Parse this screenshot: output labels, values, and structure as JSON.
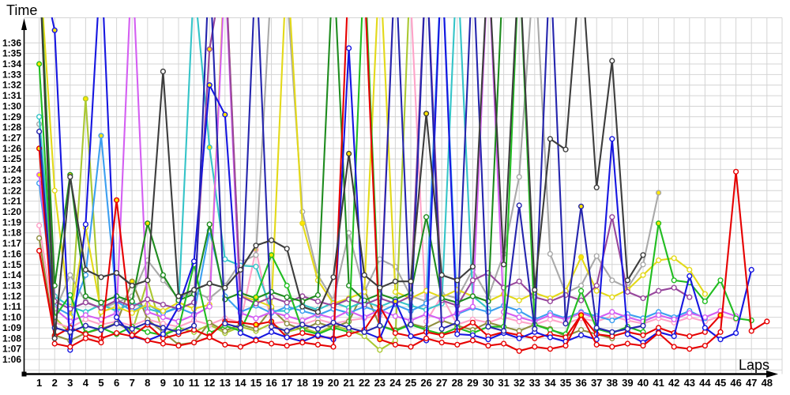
{
  "chart_data": {
    "type": "line",
    "title": "",
    "ylabel": "Time",
    "xlabel": "Laps",
    "x": [
      1,
      2,
      3,
      4,
      5,
      6,
      7,
      8,
      9,
      10,
      11,
      12,
      13,
      14,
      15,
      16,
      17,
      18,
      19,
      20,
      21,
      22,
      23,
      24,
      25,
      26,
      27,
      28,
      29,
      30,
      31,
      32,
      33,
      34,
      35,
      36,
      37,
      38,
      39,
      40,
      41,
      42,
      43,
      44,
      45,
      46,
      47,
      48
    ],
    "y_axis": {
      "unit": "m:ss",
      "min": "1:06",
      "max": "1:36",
      "grid_step_seconds": 1,
      "offchart_value": 104
    },
    "legend": "none",
    "grid": true,
    "series": [
      {
        "name": "light-green",
        "color": "#aac832",
        "highlight_laps": [
          4
        ],
        "values": [
          104,
          70.0,
          68.5,
          90.7,
          68.8,
          69.5,
          68.6,
          73.5,
          68.4,
          69.0,
          68.6,
          69.3,
          68.5,
          69.1,
          68.7,
          69.4,
          68.6,
          69.0,
          68.5,
          69.2,
          68.8,
          68.2,
          66.9,
          67.8,
          104,
          null,
          null,
          null,
          null,
          null,
          null,
          null,
          null,
          null,
          null,
          null,
          null,
          null,
          null,
          null,
          null,
          null,
          null,
          null,
          null,
          null,
          null,
          null
        ]
      },
      {
        "name": "pink",
        "color": "#ffa3c8",
        "highlight_laps": [
          15
        ],
        "values": [
          78.7,
          69.5,
          69.0,
          69.8,
          69.3,
          69.6,
          69.2,
          69.8,
          69.4,
          69.1,
          69.7,
          69.3,
          69.9,
          69.5,
          76.4,
          69.4,
          69.6,
          69.3,
          69.8,
          69.4,
          69.7,
          69.9,
          70.2,
          104,
          100,
          69.6,
          72.0,
          69.3,
          69.8,
          69.5,
          70.0,
          69.6,
          69.3,
          69.8,
          69.4,
          69.9,
          69.6,
          70.1,
          69.7,
          69.4,
          69.9,
          69.5,
          70.0,
          69.6,
          70.1,
          69.8,
          null,
          null
        ]
      },
      {
        "name": "olive",
        "color": "#8f8f3f",
        "highlight_laps": [
          7,
          22
        ],
        "values": [
          77.5,
          68.3,
          67.8,
          68.5,
          68.9,
          69.4,
          73.4,
          69.8,
          68.6,
          67.4,
          67.6,
          69.5,
          68.7,
          69.3,
          68.9,
          70.8,
          69.4,
          68.8,
          69.5,
          69.0,
          69.6,
          72.6,
          69.2,
          68.8,
          69.4,
          69.0,
          69.7,
          69.2,
          68.8,
          69.5,
          69.1,
          68.7,
          69.3,
          68.9,
          68.2,
          68.8,
          68.4,
          68.0,
          null,
          null,
          null,
          null,
          null,
          null,
          null,
          null,
          null,
          null
        ]
      },
      {
        "name": "gray",
        "color": "#a9a9a9",
        "highlight_laps": [
          41
        ],
        "values": [
          88.3,
          70.5,
          74.0,
          71.5,
          70.8,
          71.4,
          72.0,
          75.4,
          73.5,
          71.8,
          72.4,
          71.8,
          73.0,
          75.2,
          75.9,
          102,
          101,
          80.0,
          74.0,
          71.6,
          78.0,
          72.4,
          75.5,
          74.8,
          72.0,
          71.5,
          72.2,
          71.8,
          74.5,
          71.9,
          76.0,
          83.3,
          104,
          76.0,
          72.3,
          73.0,
          75.8,
          73.5,
          72.8,
          75.0,
          81.8,
          null,
          null,
          null,
          null,
          null,
          null,
          null
        ]
      },
      {
        "name": "cyan",
        "color": "#35c4c8",
        "highlight_laps": [
          12
        ],
        "values": [
          89.0,
          72.0,
          71.0,
          70.5,
          71.2,
          70.6,
          71.4,
          70.8,
          70.4,
          71.0,
          102,
          86.1,
          75.5,
          74.9,
          74.8,
          70.6,
          70.6,
          71.2,
          70.7,
          71.4,
          70.9,
          71.5,
          71.0,
          71.6,
          71.1,
          70.7,
          71.3,
          104,
          72.0,
          70.8,
          null,
          null,
          null,
          null,
          null,
          null,
          null,
          null,
          null,
          null,
          null,
          null,
          null,
          null,
          null,
          null,
          null,
          null
        ]
      },
      {
        "name": "sky-blue",
        "color": "#3c9ff0",
        "highlight_laps": [
          5
        ],
        "values": [
          82.7,
          71.0,
          70.2,
          74.0,
          87.2,
          71.5,
          70.6,
          71.2,
          70.4,
          70.9,
          70.3,
          78.2,
          72.0,
          70.5,
          71.1,
          70.4,
          71.0,
          70.6,
          70.2,
          70.8,
          70.4,
          71.0,
          70.5,
          71.2,
          70.6,
          71.3,
          104,
          70.3,
          70.9,
          70.5,
          71.1,
          70.6,
          69.8,
          70.4,
          69.9,
          70.5,
          70.1,
          69.7,
          70.3,
          69.9,
          70.5,
          70.0,
          70.6,
          69.9,
          null,
          null,
          null,
          null
        ]
      },
      {
        "name": "yellow",
        "color": "#e3d919",
        "highlight_laps": [
          18,
          36
        ],
        "values": [
          104,
          82.0,
          70.0,
          78.5,
          70.5,
          71.0,
          70.4,
          71.2,
          70.6,
          71.4,
          70.8,
          71.2,
          104,
          72.0,
          71.6,
          71.0,
          104,
          78.9,
          73.5,
          71.3,
          71.8,
          72.4,
          104,
          72.4,
          71.8,
          72.5,
          71.9,
          72.6,
          72.0,
          71.5,
          72.2,
          71.6,
          72.3,
          71.8,
          72.5,
          75.7,
          72.5,
          71.9,
          72.6,
          74.0,
          75.4,
          75.6,
          74.5,
          72.2,
          null,
          null,
          null,
          null
        ]
      },
      {
        "name": "violet",
        "color": "#d45ff2",
        "highlight_laps": [
          1
        ],
        "values": [
          83.5,
          70.8,
          69.6,
          70.2,
          69.8,
          70.4,
          104,
          70.5,
          70.0,
          69.6,
          70.2,
          71.0,
          103,
          70.4,
          69.9,
          70.5,
          70.1,
          69.7,
          70.3,
          69.9,
          70.6,
          70.0,
          70.7,
          70.1,
          69.7,
          70.3,
          69.8,
          70.4,
          71.0,
          104,
          70.5,
          70.0,
          69.6,
          70.2,
          69.8,
          70.4,
          69.9,
          70.5,
          70.0,
          69.6,
          70.2,
          69.8,
          70.4,
          70.0,
          70.6,
          70.1,
          null,
          null
        ]
      },
      {
        "name": "purple",
        "color": "#97479c",
        "highlight_laps": [
          12
        ],
        "values": [
          104,
          71.5,
          70.8,
          71.4,
          70.9,
          71.6,
          71.0,
          71.7,
          71.2,
          70.8,
          71.4,
          95.4,
          104,
          72.0,
          71.3,
          71.9,
          71.4,
          72.0,
          71.5,
          71.1,
          71.7,
          71.2,
          71.8,
          71.3,
          72.0,
          104,
          71.6,
          71.1,
          73.5,
          74.2,
          72.8,
          73.4,
          71.9,
          71.5,
          72.1,
          71.6,
          73.0,
          79.5,
          72.4,
          71.8,
          72.5,
          72.8,
          71.9,
          null,
          null,
          null,
          null,
          null
        ]
      },
      {
        "name": "dark-green",
        "color": "#1f8c1f",
        "highlight_laps": [
          3,
          8
        ],
        "values": [
          104,
          73.0,
          83.5,
          72.0,
          71.4,
          72.0,
          71.5,
          78.9,
          74.0,
          71.6,
          72.2,
          78.8,
          71.7,
          72.3,
          71.8,
          72.4,
          71.9,
          71.5,
          72.1,
          104,
          73.0,
          71.6,
          72.2,
          71.7,
          72.3,
          79.5,
          71.8,
          71.4,
          72.0,
          71.5,
          104,
          null,
          null,
          null,
          null,
          null,
          null,
          null,
          null,
          null,
          null,
          null,
          null,
          null,
          null,
          null,
          null,
          null
        ]
      },
      {
        "name": "green",
        "color": "#21bd21",
        "highlight_laps": [
          1,
          15,
          16,
          41
        ],
        "values": [
          94.0,
          70.0,
          72.1,
          68.5,
          69.0,
          68.4,
          69.1,
          68.6,
          68.3,
          68.9,
          75.0,
          68.5,
          69.2,
          68.7,
          71.9,
          75.9,
          73.0,
          68.8,
          68.4,
          69.0,
          68.6,
          104,
          69.2,
          68.7,
          69.3,
          68.8,
          68.4,
          69.0,
          68.5,
          69.1,
          69.1,
          104,
          69.3,
          68.8,
          68.4,
          72.5,
          68.9,
          68.5,
          69.1,
          68.6,
          78.9,
          73.5,
          73.3,
          71.5,
          73.5,
          69.9,
          69.7,
          null
        ]
      },
      {
        "name": "red-2",
        "color": "#e60000",
        "highlight_laps": [
          13,
          14,
          15,
          16,
          23,
          36,
          45
        ],
        "values": [
          76.3,
          68.2,
          69.0,
          68.4,
          68.0,
          68.5,
          68.2,
          69.3,
          68.0,
          68.4,
          68.8,
          68.2,
          69.6,
          69.5,
          69.3,
          69.6,
          68.1,
          68.5,
          68.2,
          68.0,
          68.4,
          68.8,
          71.0,
          68.5,
          68.2,
          68.6,
          68.3,
          68.7,
          69.5,
          68.2,
          68.6,
          68.3,
          68.0,
          68.4,
          68.1,
          70.2,
          68.4,
          68.2,
          68.6,
          68.3,
          69.0,
          68.5,
          68.2,
          68.6,
          70.2,
          null,
          null,
          null
        ]
      },
      {
        "name": "blue",
        "color": "#1616e0",
        "highlight_laps": [
          2,
          12,
          13,
          24
        ],
        "values": [
          104,
          97.2,
          66.9,
          78.8,
          104,
          70.0,
          68.2,
          67.8,
          68.4,
          71.0,
          75.3,
          92.0,
          89.2,
          68.5,
          67.9,
          68.6,
          68.1,
          67.7,
          68.3,
          67.9,
          95.5,
          68.6,
          68.0,
          71.5,
          68.2,
          67.8,
          104,
          68.4,
          68.3,
          67.9,
          68.5,
          68.0,
          68.6,
          68.1,
          67.7,
          68.3,
          67.9,
          86.9,
          68.4,
          67.6,
          68.6,
          68.2,
          73.9,
          69.0,
          67.9,
          68.5,
          74.5,
          null
        ]
      },
      {
        "name": "red",
        "color": "#e60000",
        "highlight_laps": [
          1,
          6,
          23,
          36
        ],
        "values": [
          86.0,
          67.5,
          67.2,
          68.0,
          67.6,
          81.1,
          68.3,
          67.8,
          67.5,
          67.3,
          67.6,
          68.1,
          67.4,
          67.2,
          67.8,
          67.5,
          67.3,
          67.6,
          67.4,
          67.2,
          103,
          102,
          67.9,
          67.4,
          67.2,
          68.0,
          67.6,
          67.4,
          67.8,
          67.3,
          67.5,
          66.8,
          67.2,
          67.0,
          67.3,
          70.2,
          67.4,
          67.2,
          67.5,
          67.3,
          68.5,
          67.2,
          67.0,
          67.3,
          68.6,
          83.8,
          68.7,
          69.6
        ]
      },
      {
        "name": "navy",
        "color": "#2525ad",
        "highlight_laps": [
          36
        ],
        "values": [
          87.6,
          69.0,
          68.6,
          69.2,
          68.8,
          69.4,
          68.9,
          69.5,
          69.0,
          68.6,
          69.2,
          104,
          69.4,
          69.0,
          104,
          69.1,
          68.7,
          69.3,
          68.9,
          69.5,
          69.0,
          68.6,
          69.2,
          104,
          69.3,
          104,
          68.9,
          69.5,
          104,
          69.1,
          68.7,
          80.6,
          68.9,
          104,
          69.4,
          80.5,
          69.0,
          68.6,
          68.9,
          69.2,
          null,
          null,
          null,
          null,
          null,
          null,
          null,
          null
        ]
      },
      {
        "name": "dark-gray",
        "color": "#3d3d3d",
        "highlight_laps": [
          21,
          26
        ],
        "values": [
          104,
          68.0,
          83.3,
          74.5,
          73.8,
          74.2,
          73.0,
          73.5,
          93.3,
          72.0,
          72.6,
          73.2,
          72.8,
          74.5,
          76.8,
          77.3,
          76.5,
          71.0,
          70.5,
          73.8,
          85.5,
          74.0,
          72.8,
          73.4,
          73.4,
          89.3,
          74.0,
          73.5,
          74.8,
          104,
          75.0,
          104,
          72.6,
          86.9,
          85.9,
          104,
          82.3,
          94.3,
          73.5,
          75.9,
          null,
          null,
          null,
          null,
          null,
          null,
          null,
          null
        ]
      }
    ]
  },
  "axes": {
    "y_ticks": [
      "1:36",
      "1:35",
      "1:34",
      "1:33",
      "1:32",
      "1:31",
      "1:30",
      "1:29",
      "1:28",
      "1:27",
      "1:26",
      "1:25",
      "1:24",
      "1:23",
      "1:22",
      "1:21",
      "1:20",
      "1:19",
      "1:18",
      "1:17",
      "1:16",
      "1:15",
      "1:14",
      "1:13",
      "1:12",
      "1:11",
      "1:10",
      "1:09",
      "1:08",
      "1:07",
      "1:06"
    ],
    "x_ticks": [
      "1",
      "2",
      "3",
      "4",
      "5",
      "6",
      "7",
      "8",
      "9",
      "10",
      "11",
      "12",
      "13",
      "14",
      "15",
      "16",
      "17",
      "18",
      "19",
      "20",
      "21",
      "22",
      "23",
      "24",
      "25",
      "26",
      "27",
      "28",
      "29",
      "30",
      "31",
      "32",
      "33",
      "34",
      "35",
      "36",
      "37",
      "38",
      "39",
      "40",
      "41",
      "42",
      "43",
      "44",
      "45",
      "46",
      "47",
      "48"
    ]
  },
  "style_colors": {
    "grid": "#d4d4d4",
    "axis": "#000000",
    "marker_fill": "#ffffff",
    "marker_highlight_fill": "#ffe600",
    "background": "#ffffff"
  }
}
